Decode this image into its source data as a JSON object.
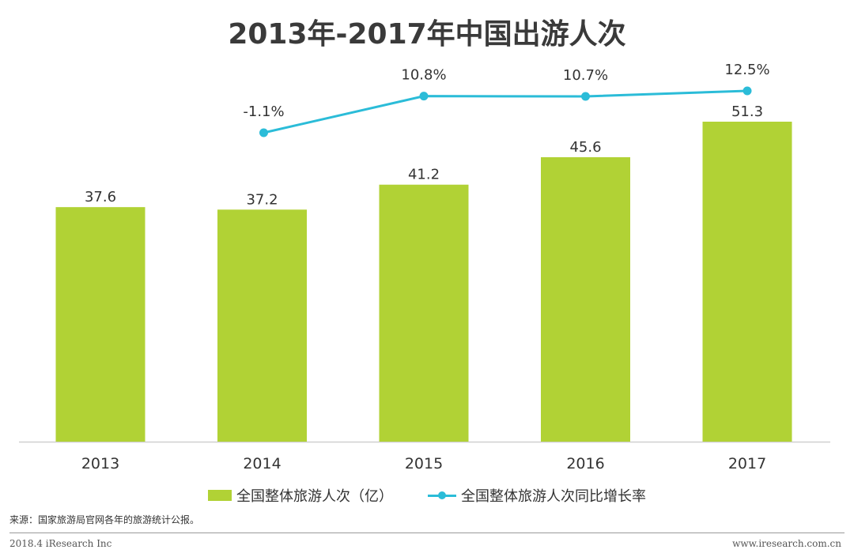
{
  "chart_data": {
    "type": "bar",
    "title": "2013年-2017年中国出游人次",
    "categories": [
      "2013",
      "2014",
      "2015",
      "2016",
      "2017"
    ],
    "series": [
      {
        "name": "全国整体旅游人次（亿）",
        "type": "bar",
        "values": [
          37.6,
          37.2,
          41.2,
          45.6,
          51.3
        ],
        "labels": [
          "37.6",
          "37.2",
          "41.2",
          "45.6",
          "51.3"
        ],
        "color": "#b1d235"
      },
      {
        "name": "全国整体旅游人次同比增长率",
        "type": "line",
        "values": [
          null,
          -1.1,
          10.8,
          10.7,
          12.5
        ],
        "labels": [
          "",
          "-1.1%",
          "10.8%",
          "10.7%",
          "12.5%"
        ],
        "color": "#2bbcd8"
      }
    ],
    "ylim": [
      0,
      51.3
    ],
    "y2lim": [
      -1.1,
      12.5
    ],
    "grid": false,
    "legend": "bottom"
  },
  "source": "来源：国家旅游局官网各年的旅游统计公报。",
  "footer": {
    "left": "2018.4 iResearch Inc",
    "right": "www.iresearch.com.cn"
  }
}
